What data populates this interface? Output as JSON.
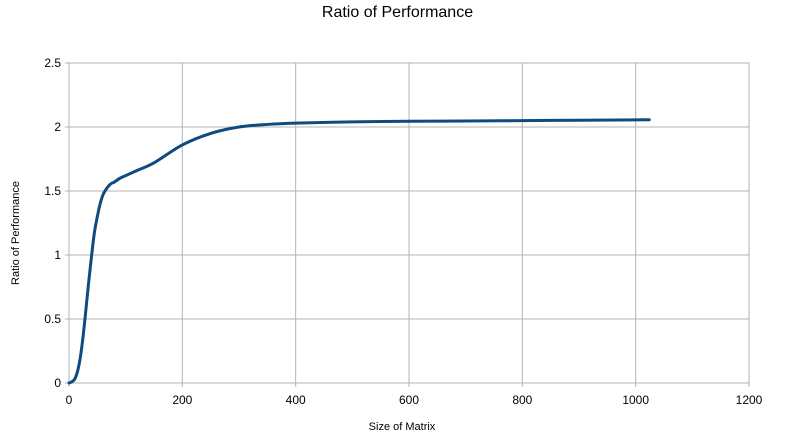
{
  "chart_data": {
    "type": "line",
    "title": "Ratio of Performance",
    "xlabel": "Size of Matrix",
    "ylabel": "Ratio of Performance",
    "xlim": [
      0,
      1200
    ],
    "ylim": [
      0,
      2.5
    ],
    "x_ticks": [
      "0",
      "200",
      "400",
      "600",
      "800",
      "1000",
      "1200"
    ],
    "y_ticks": [
      "0",
      "0.5",
      "1",
      "1.5",
      "2",
      "2.5"
    ],
    "grid": true,
    "legend": "none",
    "series": [
      {
        "color": "#0f4a80",
        "x": [
          0,
          5,
          10,
          15,
          20,
          25,
          30,
          35,
          40,
          45,
          50,
          55,
          60,
          65,
          70,
          75,
          80,
          90,
          100,
          120,
          150,
          200,
          250,
          300,
          350,
          400,
          500,
          600,
          700,
          800,
          900,
          1000,
          1024
        ],
        "y": [
          0.0,
          0.01,
          0.03,
          0.09,
          0.2,
          0.37,
          0.58,
          0.8,
          1.0,
          1.18,
          1.3,
          1.4,
          1.47,
          1.51,
          1.54,
          1.56,
          1.57,
          1.6,
          1.62,
          1.66,
          1.72,
          1.86,
          1.95,
          2.0,
          2.02,
          2.03,
          2.04,
          2.045,
          2.047,
          2.05,
          2.053,
          2.056,
          2.057
        ]
      }
    ]
  }
}
